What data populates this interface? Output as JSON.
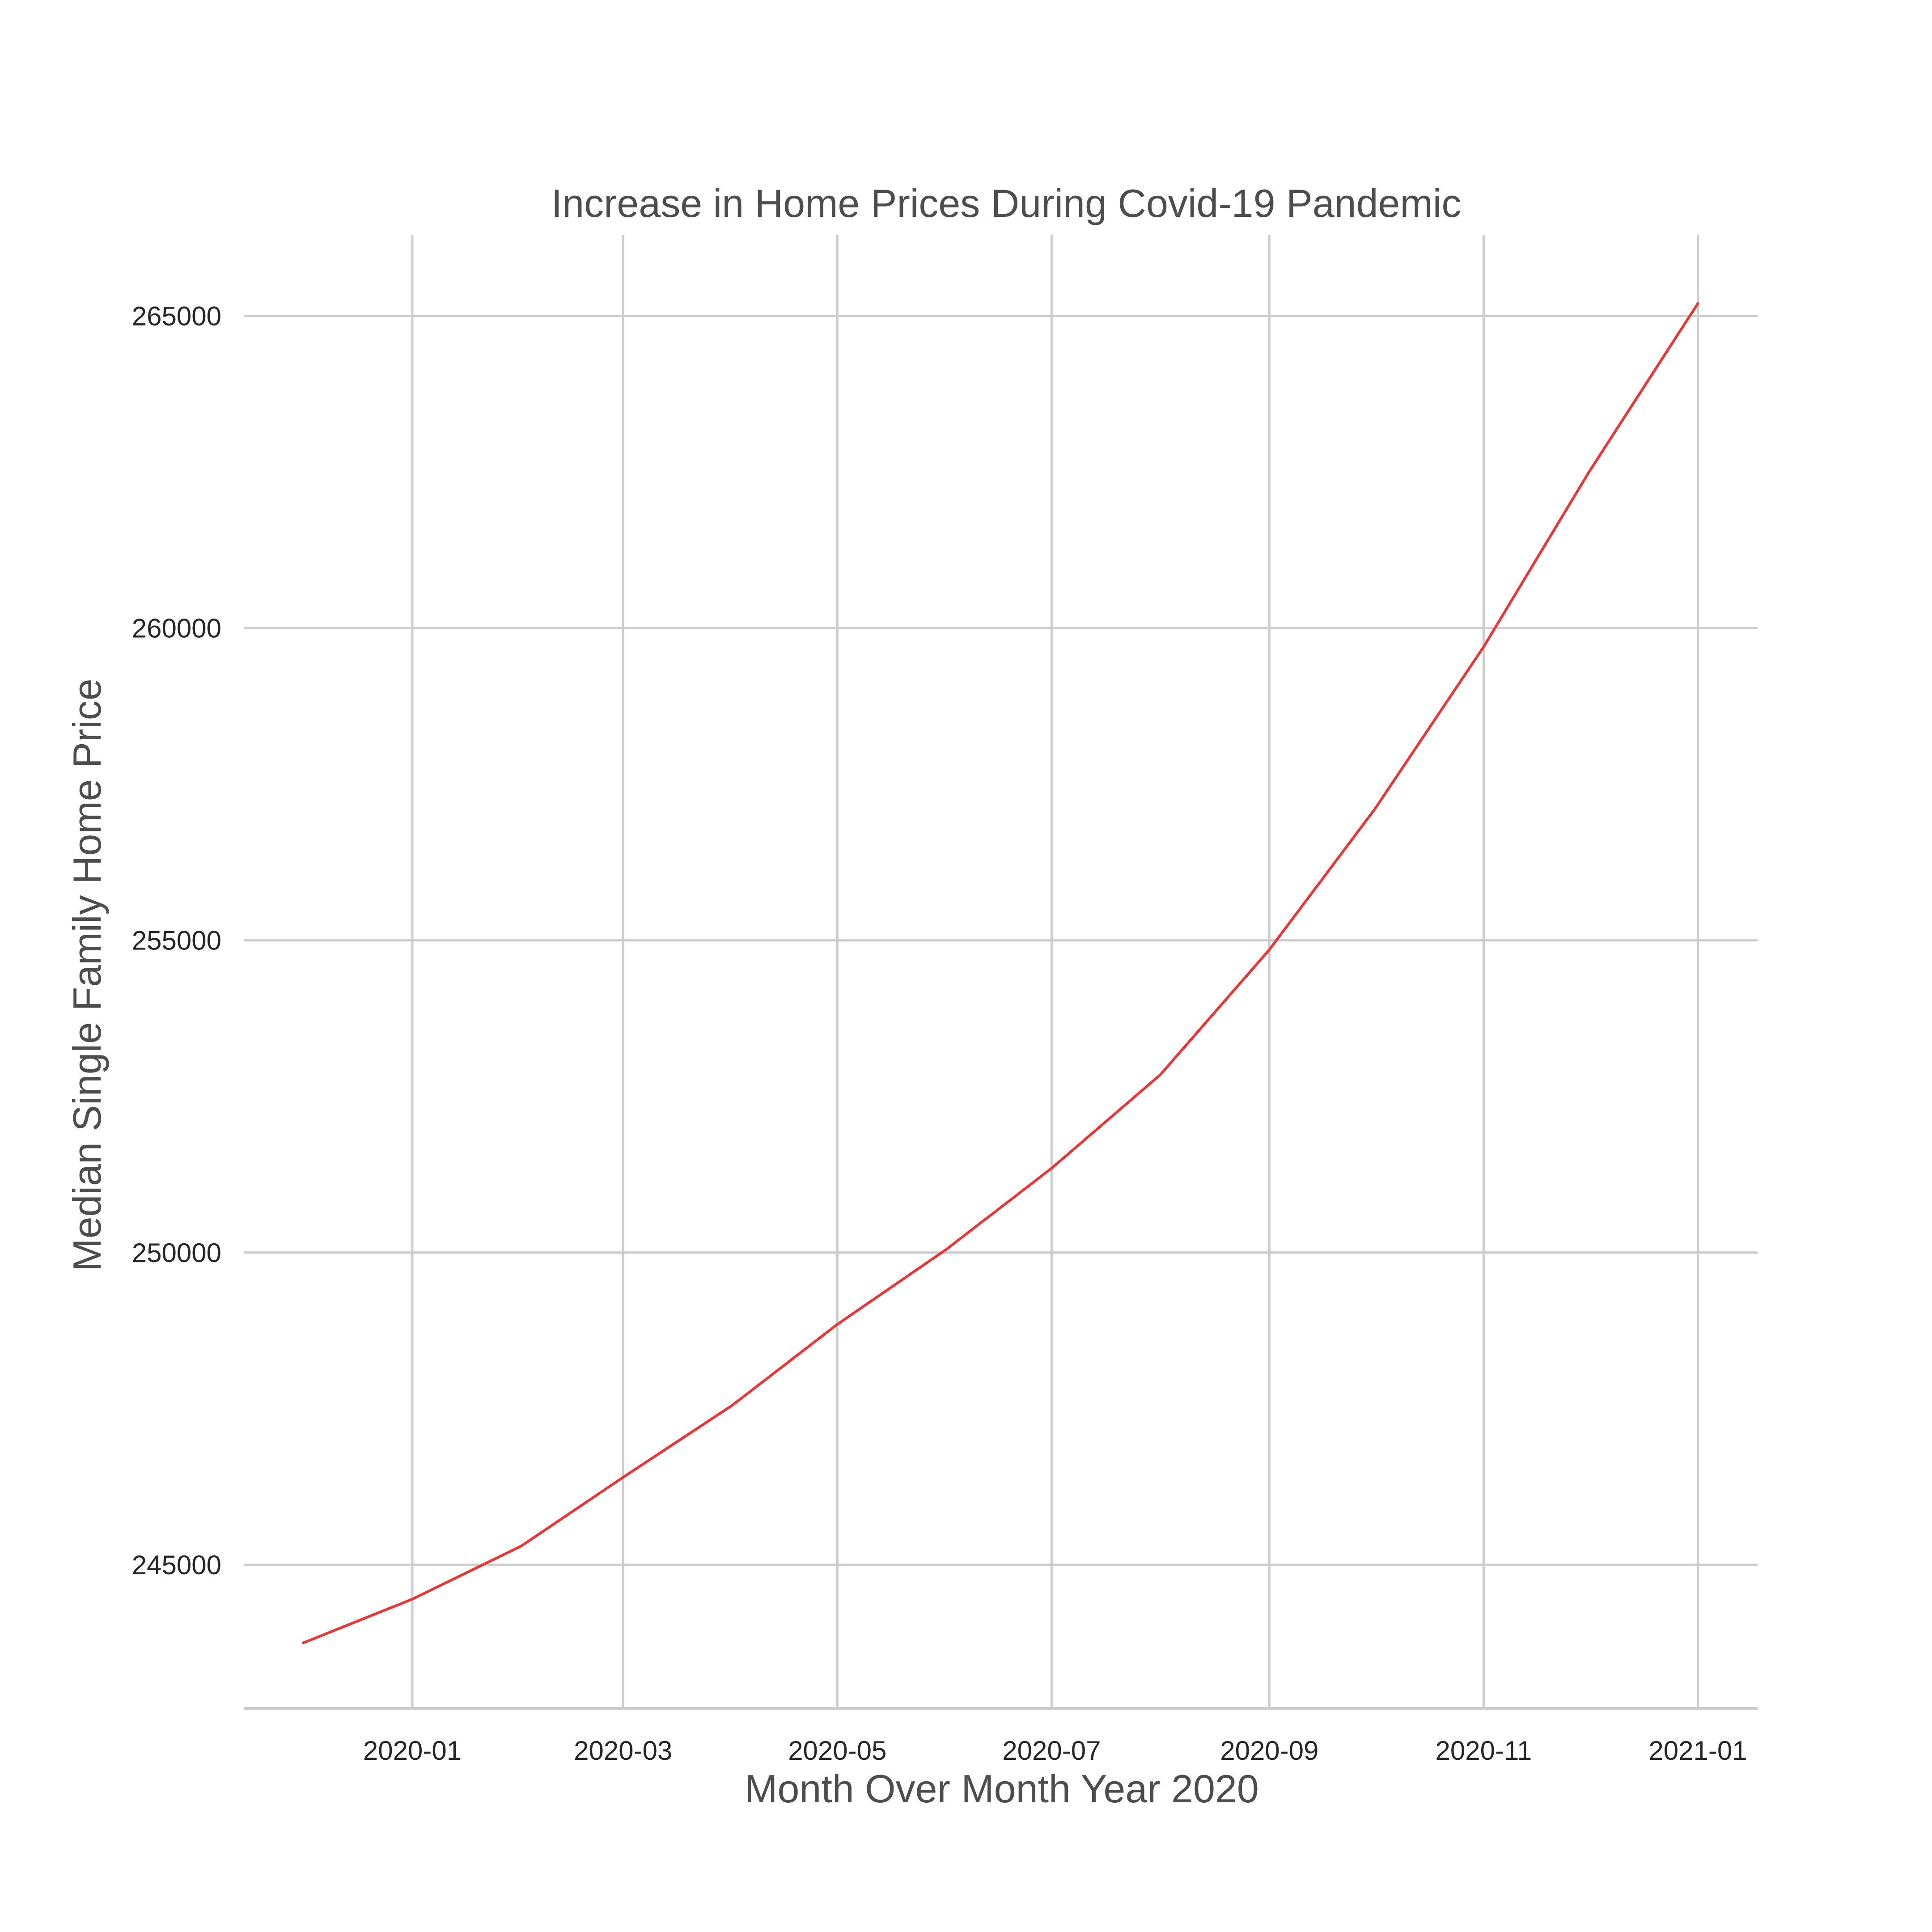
{
  "chart_data": {
    "type": "line",
    "title": "Increase in Home Prices During Covid-19 Pandemic",
    "xlabel": "Month Over Month Year 2020",
    "ylabel": "Median Single Family Home Price",
    "x_tick_labels": [
      "2020-01",
      "2020-03",
      "2020-05",
      "2020-07",
      "2020-09",
      "2020-11",
      "2021-01"
    ],
    "y_tick_labels": [
      "245000",
      "250000",
      "255000",
      "260000",
      "265000"
    ],
    "x_ticks": [
      "2020-01-01",
      "2020-03-01",
      "2020-05-01",
      "2020-07-01",
      "2020-09-01",
      "2020-11-01",
      "2021-01-01"
    ],
    "y_ticks": [
      245000,
      250000,
      255000,
      260000,
      265000
    ],
    "xlim": [
      "2019-11-14",
      "2021-01-18"
    ],
    "ylim": [
      242700,
      266300
    ],
    "grid": true,
    "series": [
      {
        "color": "#e23a3a",
        "x": [
          "2019-12-01",
          "2020-01-01",
          "2020-02-01",
          "2020-03-01",
          "2020-04-01",
          "2020-05-01",
          "2020-06-01",
          "2020-07-01",
          "2020-08-01",
          "2020-09-01",
          "2020-10-01",
          "2020-11-01",
          "2020-12-01",
          "2021-01-01"
        ],
        "y": [
          243750,
          244450,
          245300,
          246400,
          247550,
          248850,
          250050,
          251350,
          252850,
          254850,
          257100,
          259700,
          262500,
          265200
        ]
      }
    ]
  }
}
